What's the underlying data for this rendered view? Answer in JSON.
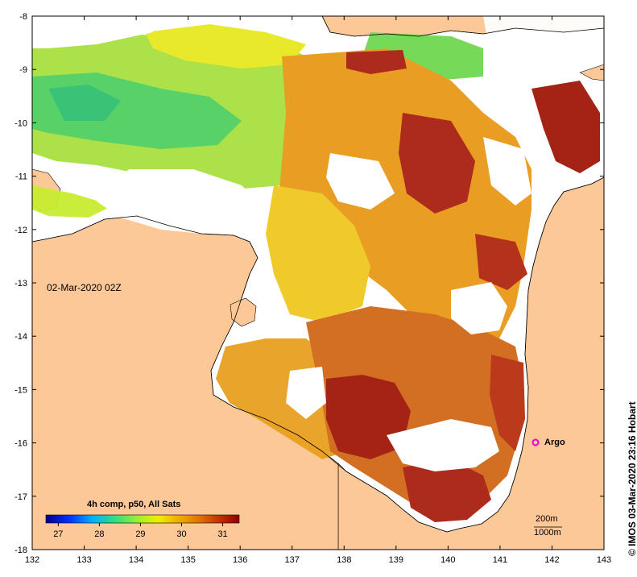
{
  "map": {
    "x_ticks": [
      "132",
      "133",
      "134",
      "135",
      "136",
      "137",
      "138",
      "139",
      "140",
      "141",
      "142",
      "143"
    ],
    "y_ticks": [
      "-8",
      "-9",
      "-10",
      "-11",
      "-12",
      "-13",
      "-14",
      "-15",
      "-16",
      "-17",
      "-18"
    ],
    "lon_range": [
      132,
      143
    ],
    "lat_range": [
      -18,
      -8
    ],
    "datestamp": "02-Mar-2020 02Z",
    "colors": {
      "land": "#fcc897",
      "nodata": "#ffffff",
      "argo_marker": "#e000e0"
    }
  },
  "colorbar": {
    "title": "4h comp, p50, All Sats",
    "tick_labels": [
      "27",
      "28",
      "29",
      "30",
      "31"
    ],
    "range": [
      26.7,
      31.4
    ],
    "palette": [
      "#000090",
      "#0030ff",
      "#00b0ff",
      "#30e080",
      "#a0f030",
      "#f0f000",
      "#f0b000",
      "#e07000",
      "#c03000",
      "#900000"
    ]
  },
  "overlays": {
    "argo_label": "Argo",
    "scale_200m": "200m",
    "scale_1000m": "1000m",
    "credit": "IMOS 03-Mar-2020 23:16 Hobart",
    "copyright_symbol": "©"
  }
}
